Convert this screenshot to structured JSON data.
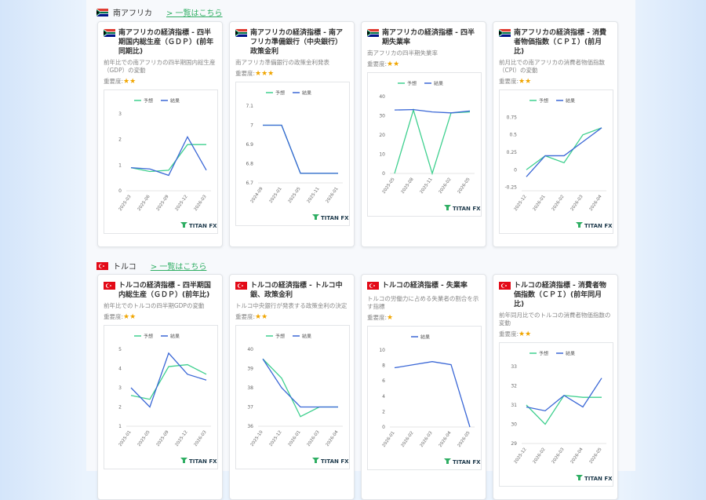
{
  "brand": "TITAN FX",
  "sections": [
    {
      "country": "南アフリカ",
      "link": "> 一覧はこちら",
      "flag": "za",
      "cards": [
        {
          "title": "南アフリカの経済指標 - 四半期国内総生産（ＧＤＰ）(前年同期比)",
          "description": "前年比での南アフリカの四半期国内総生産（GDP）の変動",
          "importance_label": "重要度:",
          "stars": "★★",
          "chart_data": {
            "type": "line",
            "categories": [
              "2025-03",
              "2025-06",
              "2025-09",
              "2025-12",
              "2026-03"
            ],
            "series": [
              {
                "name": "予想",
                "color": "#3fd08f",
                "values": [
                  0.9,
                  0.75,
                  0.8,
                  1.8,
                  1.8
                ]
              },
              {
                "name": "結果",
                "color": "#3a67d6",
                "values": [
                  0.9,
                  0.85,
                  0.6,
                  2.1,
                  0.8
                ]
              }
            ],
            "ylim": [
              0,
              3
            ],
            "yticks": [
              0,
              1,
              2,
              3
            ]
          }
        },
        {
          "title": "南アフリカの経済指標 - 南アフリカ準備銀行（中央銀行）政策金利",
          "description": "南アフリカ準備銀行の政策金利発表",
          "importance_label": "重要度:",
          "stars": "★★★",
          "chart_data": {
            "type": "line",
            "categories": [
              "2024-09",
              "2025-01",
              "2025-05",
              "2025-11",
              "2026-01"
            ],
            "series": [
              {
                "name": "予想",
                "color": "#3fd08f",
                "values": [
                  7,
                  7,
                  6.75,
                  6.75,
                  6.75
                ]
              },
              {
                "name": "結果",
                "color": "#3a67d6",
                "values": [
                  7,
                  7,
                  6.75,
                  6.75,
                  6.75
                ]
              }
            ],
            "ylim": [
              6.7,
              7.1
            ],
            "yticks": [
              6.7,
              6.8,
              6.9,
              7,
              7.1
            ]
          }
        },
        {
          "title": "南アフリカの経済指標 - 四半期失業率",
          "description": "南アフリカの四半期失業率",
          "importance_label": "重要度:",
          "stars": "★★",
          "chart_data": {
            "type": "line",
            "categories": [
              "2025-05",
              "2025-08",
              "2025-11",
              "2026-02",
              "2026-05"
            ],
            "series": [
              {
                "name": "予想",
                "color": "#3fd08f",
                "values": [
                  0,
                  33,
                  0,
                  31.5,
                  32
                ]
              },
              {
                "name": "結果",
                "color": "#3a67d6",
                "values": [
                  33,
                  33.2,
                  32,
                  31.5,
                  32.5
                ]
              }
            ],
            "ylim": [
              0,
              40
            ],
            "yticks": [
              0,
              10,
              20,
              30,
              40
            ]
          }
        },
        {
          "title": "南アフリカの経済指標 - 消費者物価指数（ＣＰＩ）(前月比)",
          "description": "前月比での南アフリカの消費者物価指数（CPI）の変動",
          "importance_label": "重要度:",
          "stars": "★★",
          "chart_data": {
            "type": "line",
            "categories": [
              "2025-12",
              "2026-01",
              "2026-02",
              "2026-03",
              "2026-04"
            ],
            "series": [
              {
                "name": "予想",
                "color": "#3fd08f",
                "values": [
                  0,
                  0.2,
                  0.1,
                  0.5,
                  0.6
                ]
              },
              {
                "name": "結果",
                "color": "#3a67d6",
                "values": [
                  -0.1,
                  0.2,
                  0.2,
                  0.4,
                  0.6
                ]
              }
            ],
            "ylim": [
              -0.3,
              0.8
            ],
            "yticks": [
              -0.25,
              0,
              0.25,
              0.5,
              0.75
            ]
          }
        }
      ]
    },
    {
      "country": "トルコ",
      "link": "> 一覧はこちら",
      "flag": "tr",
      "cards": [
        {
          "title": "トルコの経済指標 - 四半期国内総生産（ＧＤＰ）(前年比)",
          "description": "前年比でのトルコの四半期GDPの変動",
          "importance_label": "重要度:",
          "stars": "★★",
          "chart_data": {
            "type": "line",
            "categories": [
              "2025-01",
              "2025-05",
              "2025-09",
              "2025-12",
              "2026-03"
            ],
            "series": [
              {
                "name": "予想",
                "color": "#3fd08f",
                "values": [
                  2.6,
                  2.4,
                  4.1,
                  4.2,
                  3.7
                ]
              },
              {
                "name": "結果",
                "color": "#3a67d6",
                "values": [
                  3,
                  2,
                  4.8,
                  3.7,
                  3.4
                ]
              }
            ],
            "ylim": [
              1,
              5
            ],
            "yticks": [
              1,
              2,
              3,
              4,
              5
            ]
          }
        },
        {
          "title": "トルコの経済指標 - トルコ中銀、政策金利",
          "description": "トルコ中央銀行が発表する政策金利の決定",
          "importance_label": "重要度:",
          "stars": "★★",
          "chart_data": {
            "type": "line",
            "categories": [
              "2025-10",
              "2025-12",
              "2026-01",
              "2026-03",
              "2026-04"
            ],
            "series": [
              {
                "name": "予想",
                "color": "#3fd08f",
                "values": [
                  39.5,
                  38.5,
                  36.5,
                  37,
                  37
                ]
              },
              {
                "name": "結果",
                "color": "#3a67d6",
                "values": [
                  39.5,
                  38,
                  37,
                  37,
                  37
                ]
              }
            ],
            "ylim": [
              36,
              40
            ],
            "yticks": [
              36,
              37,
              38,
              39,
              40
            ]
          }
        },
        {
          "title": "トルコの経済指標 - 失業率",
          "description": "トルコの労働力に占める失業者の割合を示す指標",
          "importance_label": "重要度:",
          "stars": "★",
          "chart_data": {
            "type": "line",
            "categories": [
              "2026-01",
              "2026-02",
              "2026-03",
              "2026-04",
              "2026-05"
            ],
            "series": [
              {
                "name": "結果",
                "color": "#3a67d6",
                "values": [
                  7.7,
                  8.1,
                  8.5,
                  8.1,
                  0
                ]
              }
            ],
            "ylim": [
              0,
              10
            ],
            "yticks": [
              0,
              2,
              4,
              6,
              8,
              10
            ]
          }
        },
        {
          "title": "トルコの経済指標 - 消費者物価指数（ＣＰＩ）(前年同月比)",
          "description": "前年同月比でのトルコの消費者物価指数の変動",
          "importance_label": "重要度:",
          "stars": "★★",
          "chart_data": {
            "type": "line",
            "categories": [
              "2025-12",
              "2026-02",
              "2026-03",
              "2026-04",
              "2026-05"
            ],
            "series": [
              {
                "name": "予想",
                "color": "#3fd08f",
                "values": [
                  31,
                  30,
                  31.5,
                  31.4,
                  31.4
                ]
              },
              {
                "name": "結果",
                "color": "#3a67d6",
                "values": [
                  30.9,
                  30.7,
                  31.5,
                  30.9,
                  32.4
                ]
              }
            ],
            "ylim": [
              29,
              33
            ],
            "yticks": [
              29,
              30,
              31,
              32,
              33
            ]
          }
        }
      ]
    }
  ]
}
